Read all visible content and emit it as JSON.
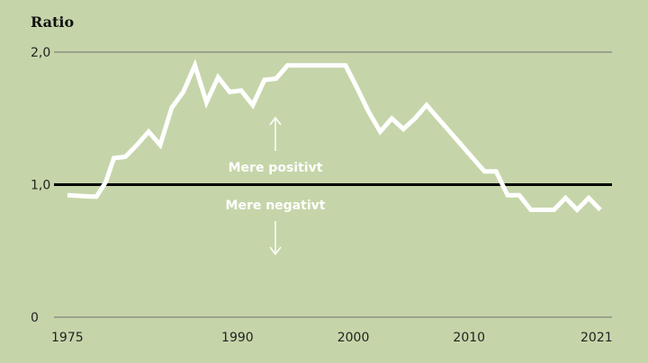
{
  "chart_data": {
    "type": "line",
    "title": "Ratio",
    "xlabel": "",
    "ylabel": "Ratio",
    "xlim": [
      1975,
      2021
    ],
    "ylim": [
      0,
      2.0
    ],
    "x_ticks": [
      "1975",
      "1990",
      "2000",
      "2010",
      "2021"
    ],
    "y_ticks": [
      "0",
      "1,0",
      "2,0"
    ],
    "reference_line": 1.0,
    "grid": "horizontal",
    "annotations": {
      "above": "Mere positivt",
      "below": "Mere negativt"
    },
    "colors": {
      "background": "#c5d5a9",
      "line": "#ffffff",
      "reference": "#000000",
      "grid": "#6f6f6f"
    },
    "series": [
      {
        "x": [
          1975,
          1977,
          1977.5,
          1978.3,
          1979,
          1980,
          1981,
          1982,
          1983,
          1984,
          1985,
          1986,
          1987,
          1988,
          1989,
          1990,
          1991,
          1992,
          1993,
          1994,
          1995,
          1996,
          1997,
          1998,
          1999,
          2000,
          2001,
          2002,
          2003,
          2004,
          2005,
          2006,
          2007,
          2008,
          2009,
          2010,
          2011,
          2012,
          2013,
          2014,
          2015,
          2016,
          2017,
          2018,
          2019,
          2020,
          2021
        ],
        "values": [
          0.92,
          0.91,
          0.91,
          1.02,
          1.2,
          1.21,
          1.3,
          1.4,
          1.3,
          1.58,
          1.7,
          1.9,
          1.62,
          1.81,
          1.7,
          1.71,
          1.6,
          1.79,
          1.8,
          1.9,
          1.9,
          1.9,
          1.9,
          1.9,
          1.9,
          1.73,
          1.55,
          1.4,
          1.5,
          1.42,
          1.5,
          1.6,
          1.5,
          1.4,
          1.3,
          1.2,
          1.1,
          1.1,
          0.92,
          0.92,
          0.81,
          0.81,
          0.81,
          0.9,
          0.81,
          0.9,
          0.81
        ]
      }
    ]
  }
}
